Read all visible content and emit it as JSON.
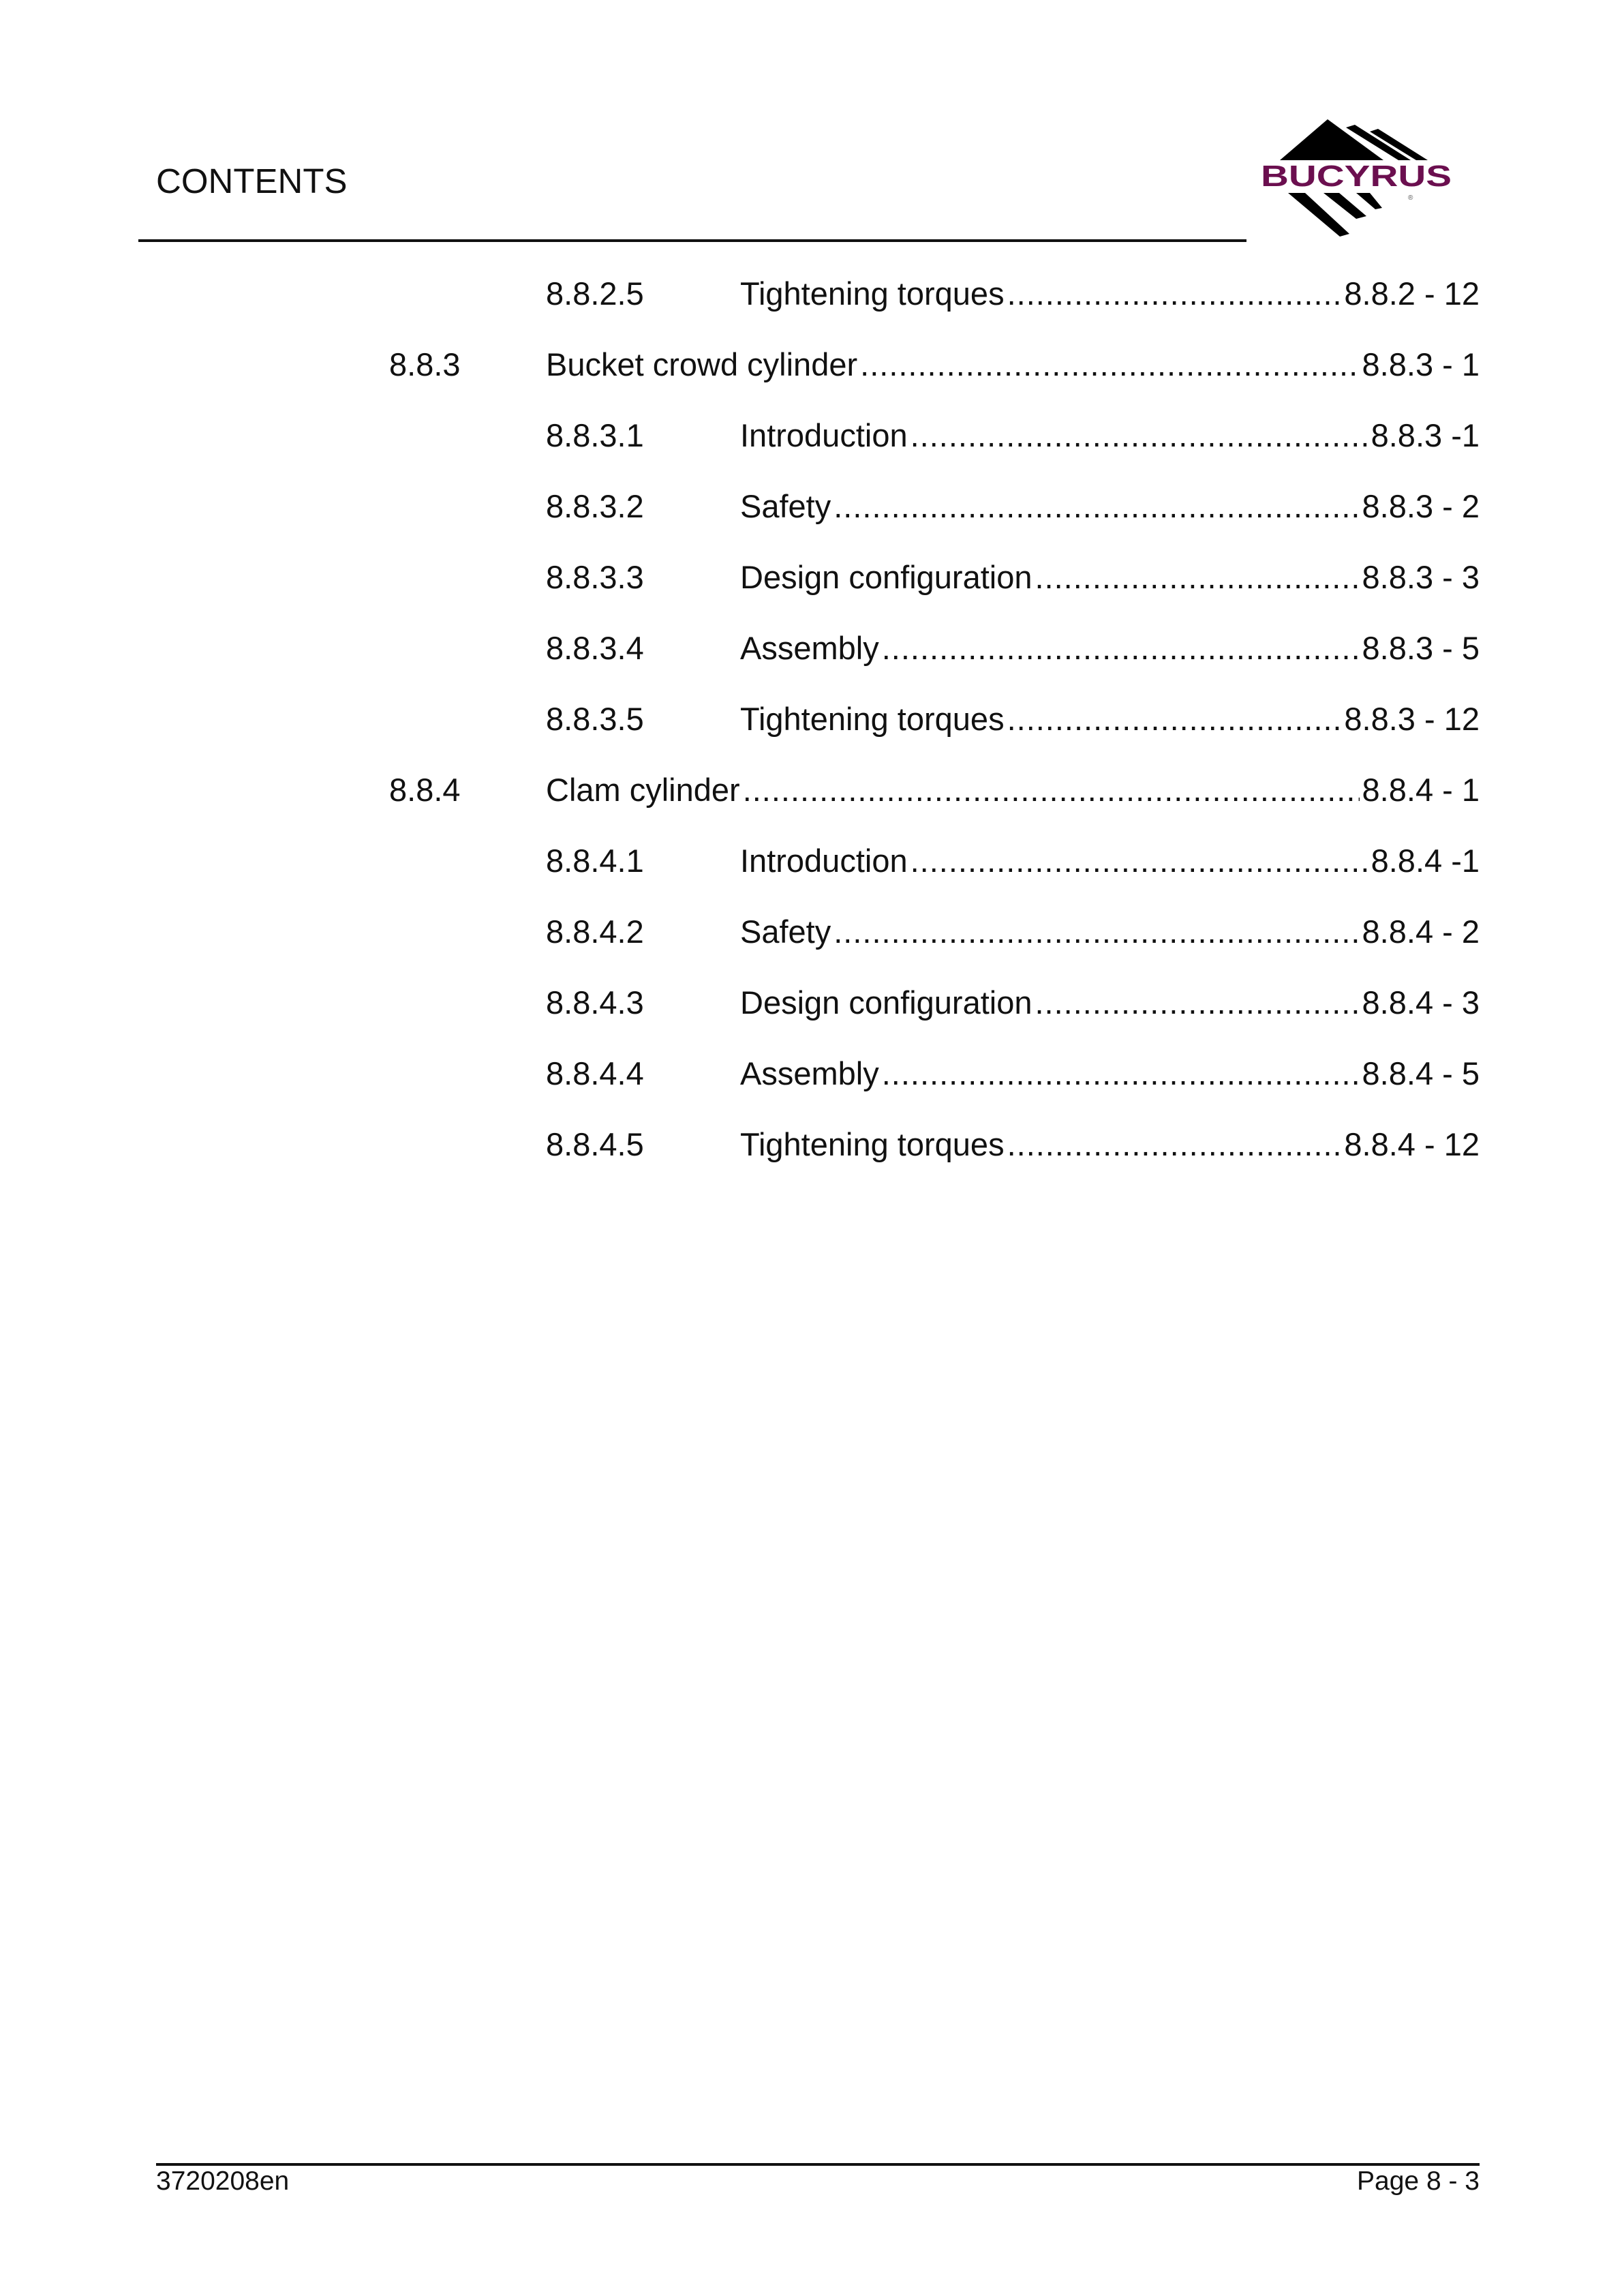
{
  "header": {
    "title": "CONTENTS",
    "logo_text": "BUCYRUS",
    "logo_color": "#6b0f4f"
  },
  "toc": [
    {
      "level": 3,
      "number": "8.8.2.5",
      "title": "Tightening torques",
      "page": "8.8.2 - 12"
    },
    {
      "level": 2,
      "number": "8.8.3",
      "title": "Bucket crowd cylinder",
      "page": "8.8.3 - 1"
    },
    {
      "level": 3,
      "number": "8.8.3.1",
      "title": "Introduction",
      "page": "8.8.3 -1"
    },
    {
      "level": 3,
      "number": "8.8.3.2",
      "title": "Safety",
      "page": "8.8.3 - 2"
    },
    {
      "level": 3,
      "number": "8.8.3.3",
      "title": "Design configuration",
      "page": "8.8.3 - 3"
    },
    {
      "level": 3,
      "number": "8.8.3.4",
      "title": "Assembly",
      "page": "8.8.3 - 5"
    },
    {
      "level": 3,
      "number": "8.8.3.5",
      "title": "Tightening torques",
      "page": "8.8.3 - 12"
    },
    {
      "level": 2,
      "number": "8.8.4",
      "title": "Clam cylinder",
      "page": "8.8.4 - 1"
    },
    {
      "level": 3,
      "number": "8.8.4.1",
      "title": "Introduction",
      "page": "8.8.4 -1"
    },
    {
      "level": 3,
      "number": "8.8.4.2",
      "title": "Safety",
      "page": "8.8.4 - 2"
    },
    {
      "level": 3,
      "number": "8.8.4.3",
      "title": "Design configuration",
      "page": "8.8.4 - 3"
    },
    {
      "level": 3,
      "number": "8.8.4.4",
      "title": "Assembly",
      "page": "8.8.4 - 5"
    },
    {
      "level": 3,
      "number": "8.8.4.5",
      "title": "Tightening torques",
      "page": "8.8.4 - 12"
    }
  ],
  "footer": {
    "doc_number": "3720208en",
    "page": "Page 8 - 3"
  }
}
